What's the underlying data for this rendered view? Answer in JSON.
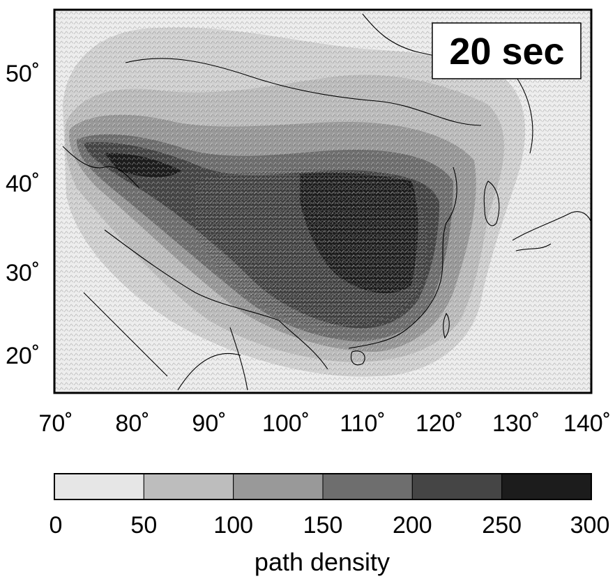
{
  "map": {
    "period_label": "20 sec",
    "lat_ticks": [
      "50˚",
      "40˚",
      "30˚",
      "20˚"
    ],
    "lon_ticks": [
      "70˚",
      "80˚",
      "90˚",
      "100˚",
      "110˚",
      "120˚",
      "130˚",
      "140˚"
    ],
    "extent": {
      "lon": [
        70,
        140
      ],
      "lat": [
        16,
        56
      ]
    }
  },
  "colorbar": {
    "label": "path density",
    "tick_labels": [
      "0",
      "50",
      "100",
      "150",
      "200",
      "250",
      "300"
    ],
    "bins": [
      {
        "range": [
          0,
          50
        ],
        "color": "#e6e6e6"
      },
      {
        "range": [
          50,
          100
        ],
        "color": "#bdbdbd"
      },
      {
        "range": [
          100,
          150
        ],
        "color": "#999999"
      },
      {
        "range": [
          150,
          200
        ],
        "color": "#6e6e6e"
      },
      {
        "range": [
          200,
          250
        ],
        "color": "#454545"
      },
      {
        "range": [
          250,
          300
        ],
        "color": "#1c1c1c"
      }
    ]
  }
}
